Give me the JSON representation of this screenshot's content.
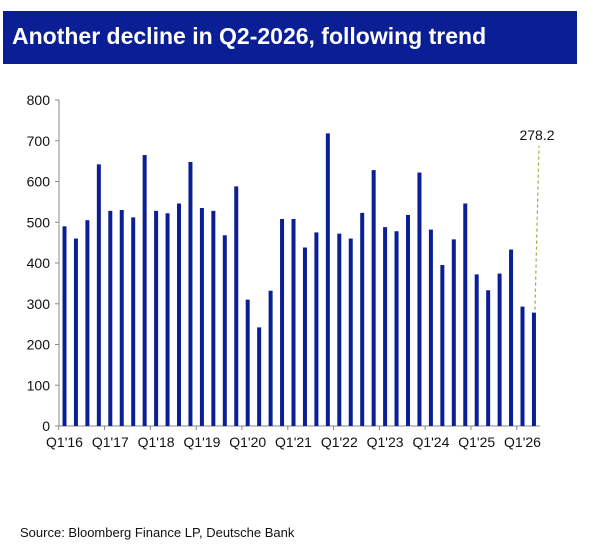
{
  "header": {
    "title": "Another decline in Q2-2026, following trend"
  },
  "footer": {
    "source": "Source: Bloomberg Finance LP, Deutsche Bank"
  },
  "chart_data": {
    "type": "bar",
    "title": "Another decline in Q2-2026, following trend",
    "xlabel": "",
    "ylabel": "",
    "ylim": [
      0,
      800
    ],
    "yticks": [
      0,
      100,
      200,
      300,
      400,
      500,
      600,
      700,
      800
    ],
    "grid": false,
    "bar_color": "#0a1f95",
    "categories": [
      "Q1'16",
      "Q2'16",
      "Q3'16",
      "Q4'16",
      "Q1'17",
      "Q2'17",
      "Q3'17",
      "Q4'17",
      "Q1'18",
      "Q2'18",
      "Q3'18",
      "Q4'18",
      "Q1'19",
      "Q2'19",
      "Q3'19",
      "Q4'19",
      "Q1'20",
      "Q2'20",
      "Q3'20",
      "Q4'20",
      "Q1'21",
      "Q2'21",
      "Q3'21",
      "Q4'21",
      "Q1'22",
      "Q2'22",
      "Q3'22",
      "Q4'22",
      "Q1'23",
      "Q2'23",
      "Q3'23",
      "Q4'23",
      "Q1'24",
      "Q2'24",
      "Q3'24",
      "Q4'24",
      "Q1'25",
      "Q2'25",
      "Q3'25",
      "Q4'25",
      "Q1'26",
      "Q2'26"
    ],
    "x_tick_labels": [
      "Q1'16",
      "Q1'17",
      "Q1'18",
      "Q1'19",
      "Q1'20",
      "Q1'21",
      "Q1'22",
      "Q1'23",
      "Q1'24",
      "Q1'25",
      "Q1'26"
    ],
    "values": [
      490,
      460,
      505,
      642,
      528,
      530,
      512,
      665,
      528,
      522,
      546,
      648,
      535,
      528,
      468,
      588,
      310,
      242,
      332,
      508,
      508,
      438,
      475,
      718,
      472,
      460,
      523,
      628,
      488,
      478,
      518,
      622,
      482,
      395,
      458,
      546,
      372,
      333,
      374,
      433,
      293,
      278.2
    ],
    "annotations": [
      {
        "text": "278.2",
        "category": "Q2'26",
        "value": 278.2,
        "style": "dashed-leader",
        "color": "#8db33c"
      }
    ]
  }
}
